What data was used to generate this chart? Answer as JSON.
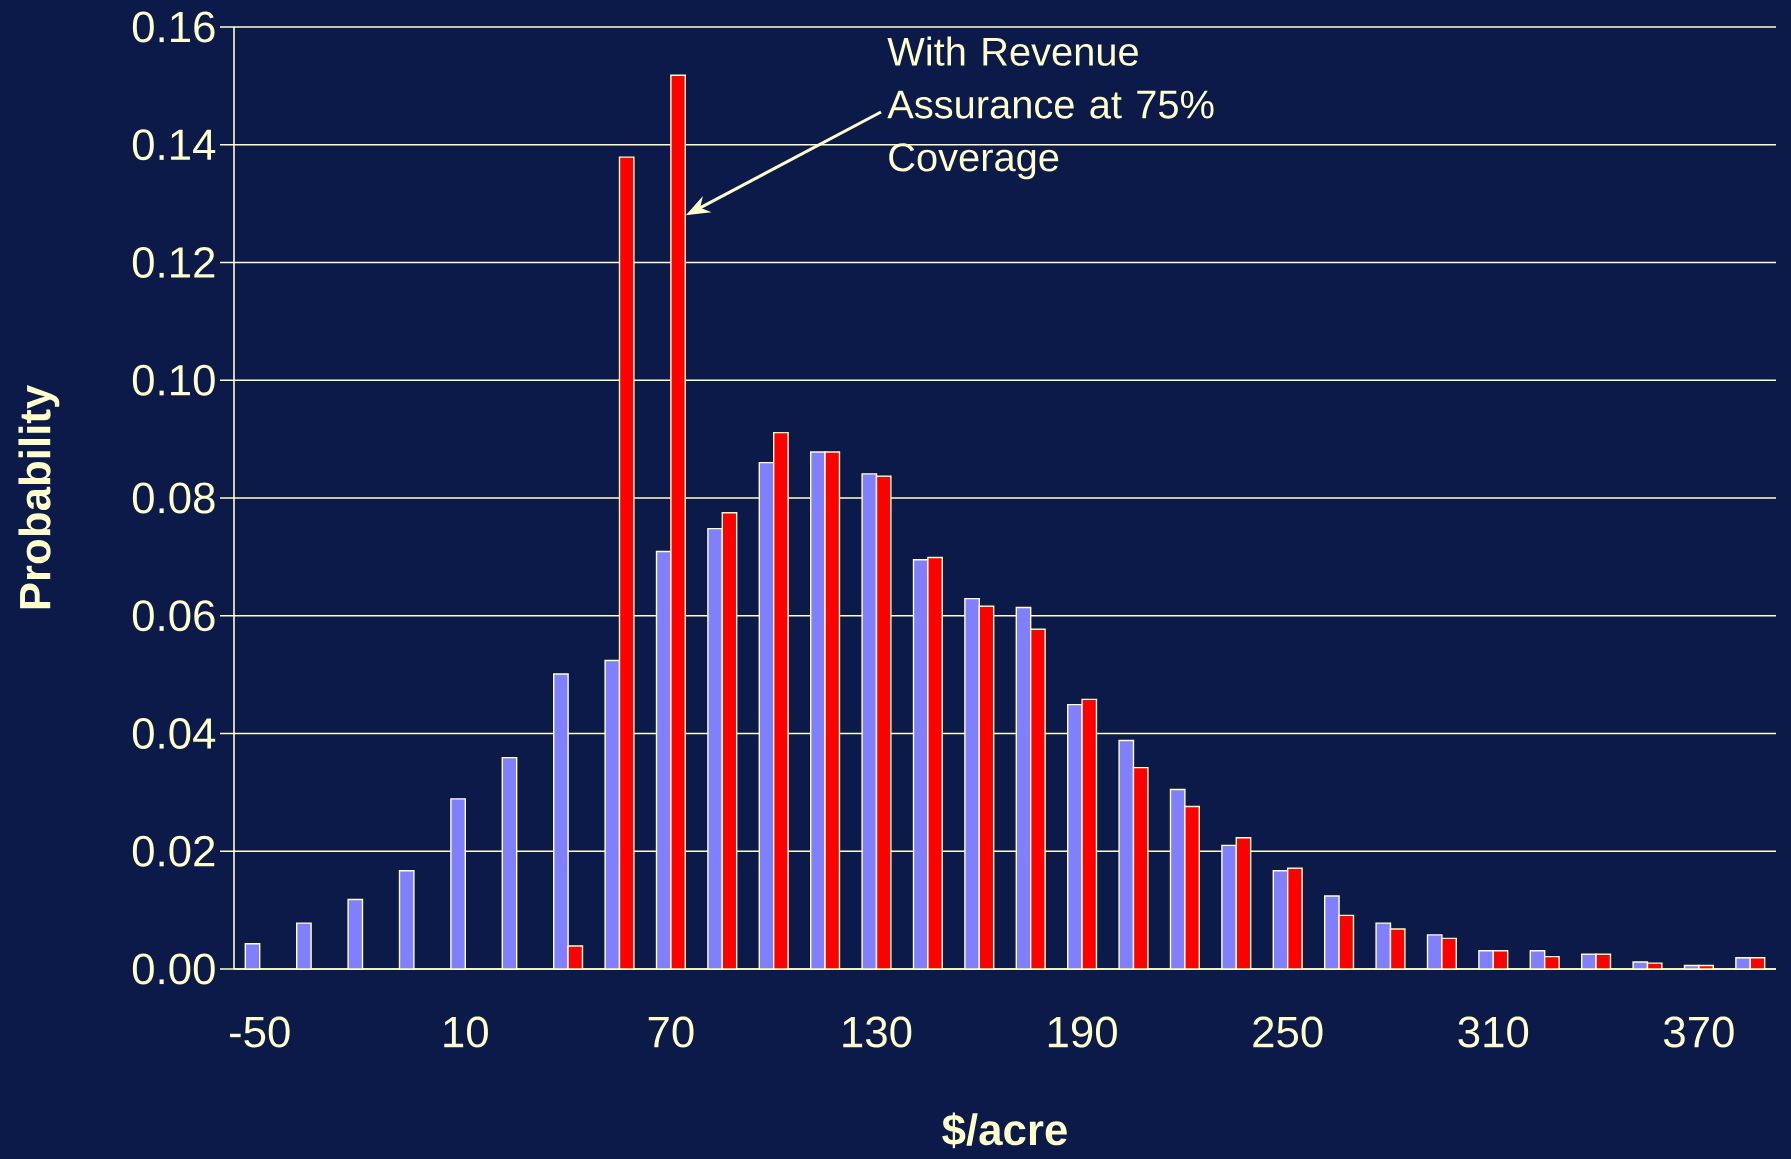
{
  "chart_data": {
    "type": "bar",
    "xlabel": "$/acre",
    "ylabel": "Probability",
    "categories": [
      "-50",
      null,
      null,
      null,
      "10",
      null,
      null,
      null,
      "70",
      null,
      null,
      null,
      "130",
      null,
      null,
      null,
      "190",
      null,
      null,
      null,
      "250",
      null,
      null,
      null,
      "310",
      null,
      null,
      null,
      "370",
      null
    ],
    "series": [
      {
        "color": "#8080ff",
        "values": [
          0.0043,
          0.0078,
          0.0118,
          0.0167,
          0.0289,
          0.0359,
          0.0501,
          0.0524,
          0.0709,
          0.0748,
          0.086,
          0.0878,
          0.0841,
          0.0695,
          0.0629,
          0.0614,
          0.0449,
          0.0388,
          0.0305,
          0.021,
          0.0167,
          0.0124,
          0.0078,
          0.0058,
          0.0031,
          0.0031,
          0.0025,
          0.0012,
          0.0006,
          0.0019
        ]
      },
      {
        "color": "#ff0000",
        "values": [
          null,
          null,
          null,
          null,
          null,
          null,
          0.0039,
          0.1379,
          0.1518,
          0.0775,
          0.0911,
          0.0878,
          0.0837,
          0.0699,
          0.0616,
          0.0577,
          0.0458,
          0.0342,
          0.0276,
          0.0223,
          0.0171,
          0.0091,
          0.0068,
          0.0052,
          0.0031,
          0.0021,
          0.0025,
          0.001,
          0.0006,
          0.0019
        ]
      }
    ],
    "ylim": [
      0,
      0.16
    ],
    "yticks": [
      {
        "value": 0,
        "label": "0.00"
      },
      {
        "value": 0.02,
        "label": "0.02"
      },
      {
        "value": 0.04,
        "label": "0.04"
      },
      {
        "value": 0.06,
        "label": "0.06"
      },
      {
        "value": 0.08,
        "label": "0.08"
      },
      {
        "value": 0.1,
        "label": "0.10"
      },
      {
        "value": 0.12,
        "label": "0.12"
      },
      {
        "value": 0.14,
        "label": "0.14"
      },
      {
        "value": 0.16,
        "label": "0.16"
      }
    ],
    "grid": "y",
    "annotations": [
      "With Revenue Assurance at 75% Coverage"
    ]
  }
}
